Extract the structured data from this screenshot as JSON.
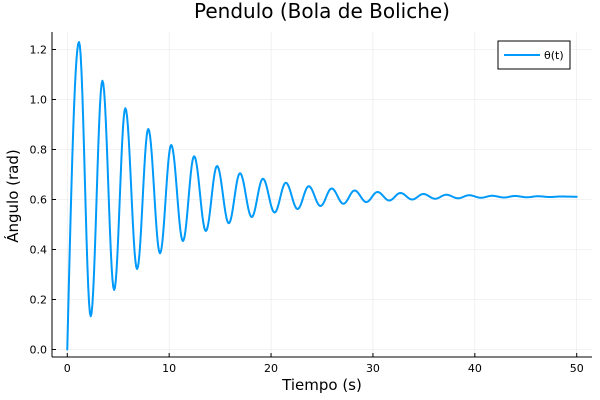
{
  "chart_data": {
    "type": "line",
    "title": "Pendulo (Bola de Boliche)",
    "xlabel": "Tiempo (s)",
    "ylabel": "Ángulo (rad)",
    "xlim": [
      -1.5,
      51.5
    ],
    "ylim": [
      -0.03,
      1.27
    ],
    "xticks": [
      0,
      10,
      20,
      30,
      40,
      50
    ],
    "yticks": [
      0.0,
      0.2,
      0.4,
      0.6,
      0.8,
      1.0,
      1.2
    ],
    "xtick_labels": [
      "0",
      "10",
      "20",
      "30",
      "40",
      "50"
    ],
    "ytick_labels": [
      "0.0",
      "0.2",
      "0.4",
      "0.6",
      "0.8",
      "1.0",
      "1.2"
    ],
    "grid": true,
    "legend_position": "top-right",
    "colors": {
      "series": "#009AFA",
      "grid": "#E8E8E8",
      "axis": "#000000",
      "legend_border": "#000000"
    },
    "series": [
      {
        "name": "θ(t)",
        "peaks": [
          [
            1.15,
            1.23
          ],
          [
            3.45,
            1.075
          ],
          [
            5.7,
            0.965
          ],
          [
            7.95,
            0.882
          ],
          [
            10.2,
            0.818
          ],
          [
            12.45,
            0.773
          ],
          [
            14.7,
            0.734
          ],
          [
            16.95,
            0.705
          ],
          [
            19.2,
            0.683
          ],
          [
            21.45,
            0.667
          ],
          [
            23.7,
            0.653
          ],
          [
            25.95,
            0.644
          ],
          [
            28.2,
            0.636
          ],
          [
            30.45,
            0.63
          ],
          [
            32.7,
            0.626
          ],
          [
            34.95,
            0.622
          ],
          [
            37.2,
            0.619
          ],
          [
            39.45,
            0.617
          ],
          [
            41.7,
            0.615
          ],
          [
            43.95,
            0.614
          ],
          [
            46.2,
            0.613
          ],
          [
            48.45,
            0.612
          ]
        ],
        "troughs": [
          [
            2.3,
            0.133
          ],
          [
            4.6,
            0.238
          ],
          [
            6.85,
            0.322
          ],
          [
            9.1,
            0.385
          ],
          [
            11.35,
            0.434
          ],
          [
            13.6,
            0.474
          ],
          [
            15.85,
            0.505
          ],
          [
            18.1,
            0.53
          ],
          [
            20.35,
            0.548
          ],
          [
            22.6,
            0.562
          ],
          [
            24.85,
            0.574
          ],
          [
            27.1,
            0.583
          ],
          [
            29.35,
            0.59
          ],
          [
            31.6,
            0.596
          ],
          [
            33.85,
            0.6
          ],
          [
            36.1,
            0.603
          ],
          [
            38.35,
            0.605
          ],
          [
            40.6,
            0.607
          ],
          [
            42.85,
            0.608
          ],
          [
            45.1,
            0.609
          ],
          [
            47.35,
            0.61
          ]
        ],
        "start": [
          0,
          0.0
        ],
        "end": [
          50,
          0.611
        ],
        "equilibrium": 0.612
      }
    ]
  }
}
